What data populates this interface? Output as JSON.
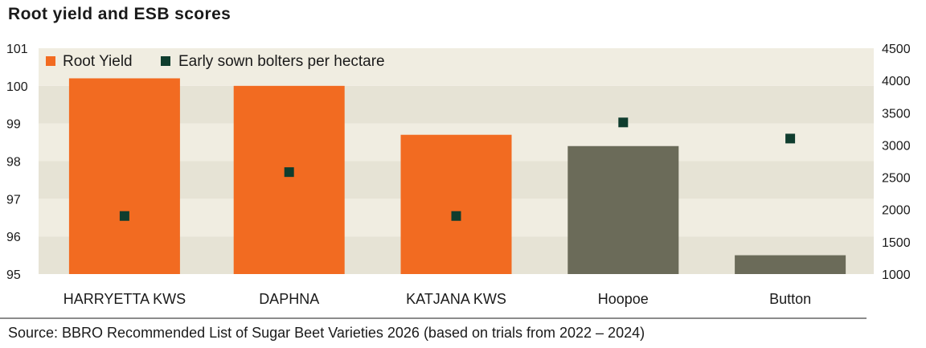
{
  "chart_data": {
    "type": "bar",
    "title": "Root yield and ESB scores",
    "source": "Source: BBRO Recommended List of Sugar Beet Varieties 2026 (based on trials from 2022 – 2024)",
    "categories": [
      "HARRYETTA KWS",
      "DAPHNA",
      "KATJANA KWS",
      "Hoopoe",
      "Button"
    ],
    "series": [
      {
        "name": "Root Yield",
        "type": "bar",
        "axis": "left",
        "values": [
          100.2,
          100.0,
          98.7,
          98.4,
          95.5
        ],
        "colors": [
          "#f26b21",
          "#f26b21",
          "#f26b21",
          "#6b6b59",
          "#6b6b59"
        ]
      },
      {
        "name": "Early sown bolters per hectare",
        "type": "scatter",
        "axis": "right",
        "values": [
          1900,
          2580,
          1900,
          3350,
          3100
        ],
        "color": "#0f3d2e"
      }
    ],
    "y_left": {
      "min": 95,
      "max": 101,
      "ticks": [
        "95",
        "96",
        "97",
        "98",
        "99",
        "100",
        "101"
      ]
    },
    "y_right": {
      "min": 1000,
      "max": 4500,
      "ticks": [
        "1000",
        "1500",
        "2000",
        "2500",
        "3000",
        "3500",
        "4000",
        "4500"
      ]
    },
    "legend_position": "top-left",
    "grid": "alternating horizontal bands",
    "band_colors": [
      "#f0ede1",
      "#e6e3d5"
    ]
  }
}
